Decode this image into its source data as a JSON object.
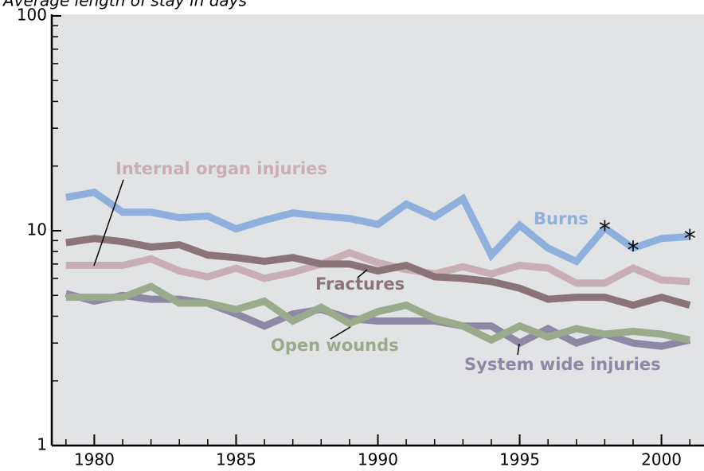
{
  "chart_data": {
    "type": "line",
    "title": "Average length of stay in days",
    "xlim": [
      1978.5,
      2001.5
    ],
    "xticks": [
      1980,
      1985,
      1990,
      1995,
      2000
    ],
    "xminorticks": [
      1979,
      1981,
      1982,
      1983,
      1984,
      1986,
      1987,
      1988,
      1989,
      1991,
      1992,
      1993,
      1994,
      1996,
      1997,
      1998,
      1999,
      2001
    ],
    "ylim": [
      1,
      100
    ],
    "yticks": [
      1,
      10,
      100
    ],
    "yminorticks": [
      2,
      3,
      4,
      5,
      6,
      7,
      8,
      9,
      20,
      30,
      40,
      50,
      60,
      70,
      80,
      90
    ],
    "yscale": "log",
    "grid": false,
    "x": [
      1979,
      1980,
      1981,
      1982,
      1983,
      1984,
      1985,
      1986,
      1987,
      1988,
      1989,
      1990,
      1991,
      1992,
      1993,
      1994,
      1995,
      1996,
      1997,
      1998,
      1999,
      2000,
      2001
    ],
    "series": [
      {
        "name": "Burns",
        "color": "#8fb0dc",
        "values": [
          14.3,
          15.1,
          12.2,
          12.2,
          11.5,
          11.7,
          10.2,
          11.2,
          12.1,
          11.7,
          11.4,
          10.7,
          13.3,
          11.6,
          14.1,
          7.7,
          10.6,
          8.3,
          7.2,
          10.3,
          8.3,
          9.2,
          9.4
        ]
      },
      {
        "name": "Internal organ injuries",
        "color": "#c9aeb6",
        "values": [
          6.9,
          6.9,
          6.9,
          7.4,
          6.5,
          6.1,
          6.7,
          6.0,
          6.4,
          7.0,
          7.9,
          7.1,
          6.6,
          6.3,
          6.8,
          6.3,
          6.9,
          6.7,
          5.7,
          5.7,
          6.7,
          5.9,
          5.8
        ]
      },
      {
        "name": "Fractures",
        "color": "#8a7478",
        "values": [
          8.8,
          9.2,
          8.9,
          8.4,
          8.6,
          7.7,
          7.5,
          7.2,
          7.5,
          7.0,
          7.0,
          6.5,
          6.9,
          6.1,
          6.0,
          5.8,
          5.4,
          4.8,
          4.9,
          4.9,
          4.5,
          4.9,
          4.5
        ]
      },
      {
        "name": "System wide injuries",
        "color": "#8e88a6",
        "values": [
          5.1,
          4.7,
          5.0,
          4.8,
          4.8,
          4.6,
          4.1,
          3.6,
          4.1,
          4.3,
          3.9,
          3.8,
          3.8,
          3.8,
          3.6,
          3.6,
          3.0,
          3.5,
          3.0,
          3.3,
          3.0,
          2.9,
          3.1
        ]
      },
      {
        "name": "Open wounds",
        "color": "#9aab8c",
        "values": [
          4.9,
          4.9,
          4.9,
          5.5,
          4.6,
          4.6,
          4.3,
          4.7,
          3.8,
          4.4,
          3.7,
          4.2,
          4.5,
          3.9,
          3.6,
          3.1,
          3.6,
          3.2,
          3.5,
          3.3,
          3.4,
          3.3,
          3.1
        ]
      }
    ],
    "annotations": [
      {
        "text": "*",
        "x": 1998,
        "y": 10.3
      },
      {
        "text": "*",
        "x": 1999,
        "y": 8.3
      },
      {
        "text": "*",
        "x": 2001,
        "y": 9.4
      }
    ]
  }
}
